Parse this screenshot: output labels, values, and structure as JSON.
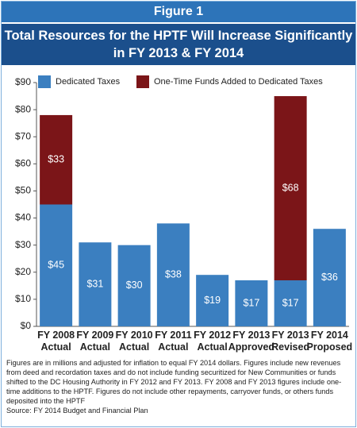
{
  "header": "Figure 1",
  "chart_data": {
    "type": "stacked-bar",
    "title": "Total Resources for the HPTF Will Increase Significantly in FY 2013 & FY 2014",
    "categories": [
      "FY 2008\nActual",
      "FY 2009\nActual",
      "FY 2010\nActual",
      "FY 2011\nActual",
      "FY 2012\nActual",
      "FY 2013\nApproved",
      "FY 2013\nRevised",
      "FY 2014\nProposed"
    ],
    "series": [
      {
        "name": "Dedicated Taxes",
        "color": "#3b7fc0",
        "values": [
          45,
          31,
          30,
          38,
          19,
          17,
          17,
          36
        ],
        "value_labels": [
          "$45",
          "$31",
          "$30",
          "$38",
          "$19",
          "$17",
          "$17",
          "$36"
        ]
      },
      {
        "name": "One-Time Funds Added to Dedicated Taxes",
        "color": "#7b1518",
        "values": [
          33,
          null,
          null,
          null,
          null,
          null,
          68,
          null
        ],
        "value_labels": [
          "$33",
          null,
          null,
          null,
          null,
          null,
          "$68",
          null
        ]
      }
    ],
    "ylim": [
      0,
      90
    ],
    "yticks": [
      {
        "value": 0,
        "label": "$0"
      },
      {
        "value": 10,
        "label": "$10"
      },
      {
        "value": 20,
        "label": "$20"
      },
      {
        "value": 30,
        "label": "$30"
      },
      {
        "value": 40,
        "label": "$40"
      },
      {
        "value": 50,
        "label": "$50"
      },
      {
        "value": 60,
        "label": "$60"
      },
      {
        "value": 70,
        "label": "$70"
      },
      {
        "value": 80,
        "label": "$80"
      },
      {
        "value": 90,
        "label": "$90"
      }
    ],
    "grid": false,
    "notes": [
      "Figures are in millions and adjusted for inflation to equal FY 2014 dollars.  Figures include new revenues from deed and recordation taxes and do not include funding securitized for New Communities or funds shifted to the DC Housing Authority in FY 2012 and FY 2013.  FY 2008 and FY 2013 figures include one-time additions to the HPTF.  Figures do not include other repayments, carryover funds, or others funds deposited into the HPTF",
      "Source: FY 2014 Budget and Financial Plan"
    ]
  }
}
